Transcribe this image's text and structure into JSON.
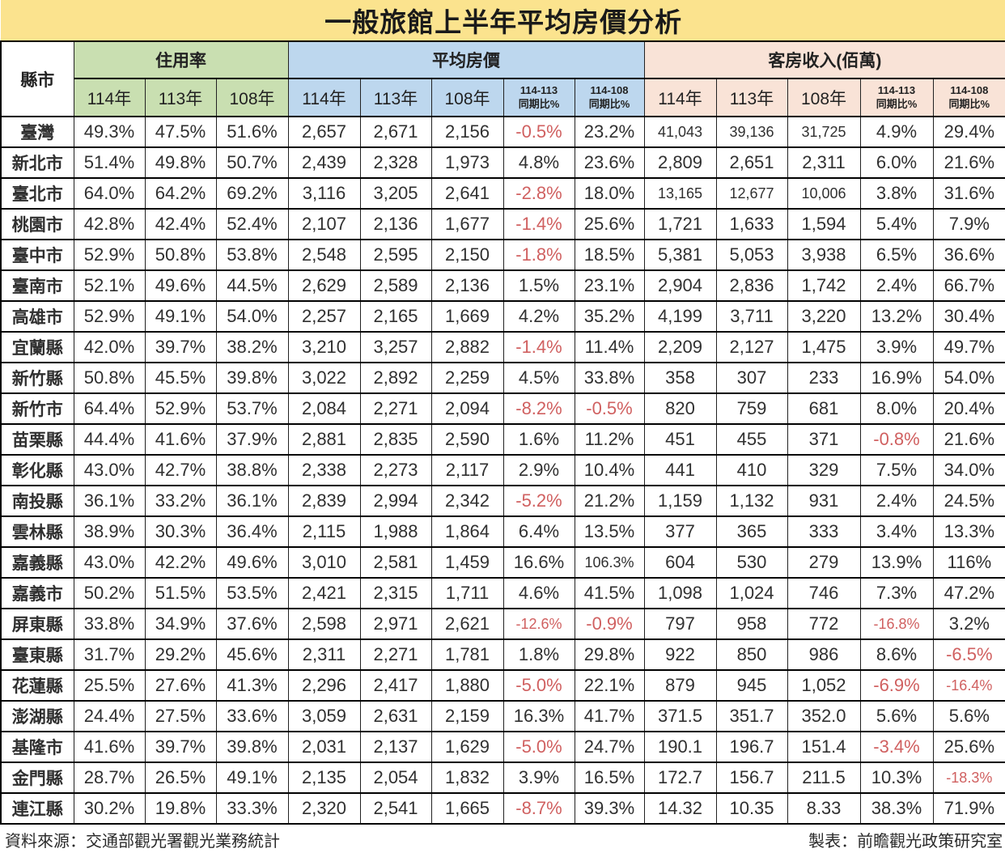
{
  "chart_data": {
    "type": "table",
    "title": "一般旅館上半年平均房價分析",
    "corner_label": "縣市",
    "groups": {
      "occupancy": {
        "label": "住用率",
        "columns": [
          "114年",
          "113年",
          "108年"
        ]
      },
      "price": {
        "label": "平均房價",
        "columns": [
          "114年",
          "113年",
          "108年",
          {
            "line1": "114-113",
            "line2": "同期比%"
          },
          {
            "line1": "114-108",
            "line2": "同期比%"
          }
        ]
      },
      "revenue": {
        "label": "客房收入(佰萬)",
        "columns": [
          "114年",
          "113年",
          "108年",
          {
            "line1": "114-113",
            "line2": "同期比%"
          },
          {
            "line1": "114-108",
            "line2": "同期比%"
          }
        ]
      }
    },
    "rows": [
      {
        "name": "臺灣",
        "occupancy": [
          "49.3%",
          "47.5%",
          "51.6%"
        ],
        "price": [
          "2,657",
          "2,671",
          "2,156",
          "-0.5%",
          "23.2%"
        ],
        "revenue": [
          "41,043",
          "39,136",
          "31,725",
          "4.9%",
          "29.4%"
        ]
      },
      {
        "name": "新北市",
        "occupancy": [
          "51.4%",
          "49.8%",
          "50.7%"
        ],
        "price": [
          "2,439",
          "2,328",
          "1,973",
          "4.8%",
          "23.6%"
        ],
        "revenue": [
          "2,809",
          "2,651",
          "2,311",
          "6.0%",
          "21.6%"
        ]
      },
      {
        "name": "臺北市",
        "occupancy": [
          "64.0%",
          "64.2%",
          "69.2%"
        ],
        "price": [
          "3,116",
          "3,205",
          "2,641",
          "-2.8%",
          "18.0%"
        ],
        "revenue": [
          "13,165",
          "12,677",
          "10,006",
          "3.8%",
          "31.6%"
        ]
      },
      {
        "name": "桃園市",
        "occupancy": [
          "42.8%",
          "42.4%",
          "52.4%"
        ],
        "price": [
          "2,107",
          "2,136",
          "1,677",
          "-1.4%",
          "25.6%"
        ],
        "revenue": [
          "1,721",
          "1,633",
          "1,594",
          "5.4%",
          "7.9%"
        ]
      },
      {
        "name": "臺中市",
        "occupancy": [
          "52.9%",
          "50.8%",
          "53.8%"
        ],
        "price": [
          "2,548",
          "2,595",
          "2,150",
          "-1.8%",
          "18.5%"
        ],
        "revenue": [
          "5,381",
          "5,053",
          "3,938",
          "6.5%",
          "36.6%"
        ]
      },
      {
        "name": "臺南市",
        "occupancy": [
          "52.1%",
          "49.6%",
          "44.5%"
        ],
        "price": [
          "2,629",
          "2,589",
          "2,136",
          "1.5%",
          "23.1%"
        ],
        "revenue": [
          "2,904",
          "2,836",
          "1,742",
          "2.4%",
          "66.7%"
        ]
      },
      {
        "name": "高雄市",
        "occupancy": [
          "52.9%",
          "49.1%",
          "54.0%"
        ],
        "price": [
          "2,257",
          "2,165",
          "1,669",
          "4.2%",
          "35.2%"
        ],
        "revenue": [
          "4,199",
          "3,711",
          "3,220",
          "13.2%",
          "30.4%"
        ]
      },
      {
        "name": "宜蘭縣",
        "occupancy": [
          "42.0%",
          "39.7%",
          "38.2%"
        ],
        "price": [
          "3,210",
          "3,257",
          "2,882",
          "-1.4%",
          "11.4%"
        ],
        "revenue": [
          "2,209",
          "2,127",
          "1,475",
          "3.9%",
          "49.7%"
        ]
      },
      {
        "name": "新竹縣",
        "occupancy": [
          "50.8%",
          "45.5%",
          "39.8%"
        ],
        "price": [
          "3,022",
          "2,892",
          "2,259",
          "4.5%",
          "33.8%"
        ],
        "revenue": [
          "358",
          "307",
          "233",
          "16.9%",
          "54.0%"
        ]
      },
      {
        "name": "新竹市",
        "occupancy": [
          "64.4%",
          "52.9%",
          "53.7%"
        ],
        "price": [
          "2,084",
          "2,271",
          "2,094",
          "-8.2%",
          "-0.5%"
        ],
        "revenue": [
          "820",
          "759",
          "681",
          "8.0%",
          "20.4%"
        ]
      },
      {
        "name": "苗栗縣",
        "occupancy": [
          "44.4%",
          "41.6%",
          "37.9%"
        ],
        "price": [
          "2,881",
          "2,835",
          "2,590",
          "1.6%",
          "11.2%"
        ],
        "revenue": [
          "451",
          "455",
          "371",
          "-0.8%",
          "21.6%"
        ]
      },
      {
        "name": "彰化縣",
        "occupancy": [
          "43.0%",
          "42.7%",
          "38.8%"
        ],
        "price": [
          "2,338",
          "2,273",
          "2,117",
          "2.9%",
          "10.4%"
        ],
        "revenue": [
          "441",
          "410",
          "329",
          "7.5%",
          "34.0%"
        ]
      },
      {
        "name": "南投縣",
        "occupancy": [
          "36.1%",
          "33.2%",
          "36.1%"
        ],
        "price": [
          "2,839",
          "2,994",
          "2,342",
          "-5.2%",
          "21.2%"
        ],
        "revenue": [
          "1,159",
          "1,132",
          "931",
          "2.4%",
          "24.5%"
        ]
      },
      {
        "name": "雲林縣",
        "occupancy": [
          "38.9%",
          "30.3%",
          "36.4%"
        ],
        "price": [
          "2,115",
          "1,988",
          "1,864",
          "6.4%",
          "13.5%"
        ],
        "revenue": [
          "377",
          "365",
          "333",
          "3.4%",
          "13.3%"
        ]
      },
      {
        "name": "嘉義縣",
        "occupancy": [
          "43.0%",
          "42.2%",
          "49.6%"
        ],
        "price": [
          "3,010",
          "2,581",
          "1,459",
          "16.6%",
          "106.3%"
        ],
        "revenue": [
          "604",
          "530",
          "279",
          "13.9%",
          "116%"
        ]
      },
      {
        "name": "嘉義市",
        "occupancy": [
          "50.2%",
          "51.5%",
          "53.5%"
        ],
        "price": [
          "2,421",
          "2,315",
          "1,711",
          "4.6%",
          "41.5%"
        ],
        "revenue": [
          "1,098",
          "1,024",
          "746",
          "7.3%",
          "47.2%"
        ]
      },
      {
        "name": "屏東縣",
        "occupancy": [
          "33.8%",
          "34.9%",
          "37.6%"
        ],
        "price": [
          "2,598",
          "2,971",
          "2,621",
          "-12.6%",
          "-0.9%"
        ],
        "revenue": [
          "797",
          "958",
          "772",
          "-16.8%",
          "3.2%"
        ]
      },
      {
        "name": "臺東縣",
        "occupancy": [
          "31.7%",
          "29.2%",
          "45.6%"
        ],
        "price": [
          "2,311",
          "2,271",
          "1,781",
          "1.8%",
          "29.8%"
        ],
        "revenue": [
          "922",
          "850",
          "986",
          "8.6%",
          "-6.5%"
        ]
      },
      {
        "name": "花蓮縣",
        "occupancy": [
          "25.5%",
          "27.6%",
          "41.3%"
        ],
        "price": [
          "2,296",
          "2,417",
          "1,880",
          "-5.0%",
          "22.1%"
        ],
        "revenue": [
          "879",
          "945",
          "1,052",
          "-6.9%",
          "-16.4%"
        ]
      },
      {
        "name": "澎湖縣",
        "occupancy": [
          "24.4%",
          "27.5%",
          "33.6%"
        ],
        "price": [
          "3,059",
          "2,631",
          "2,159",
          "16.3%",
          "41.7%"
        ],
        "revenue": [
          "371.5",
          "351.7",
          "352.0",
          "5.6%",
          "5.6%"
        ]
      },
      {
        "name": "基隆市",
        "occupancy": [
          "41.6%",
          "39.7%",
          "39.8%"
        ],
        "price": [
          "2,031",
          "2,137",
          "1,629",
          "-5.0%",
          "24.7%"
        ],
        "revenue": [
          "190.1",
          "196.7",
          "151.4",
          "-3.4%",
          "25.6%"
        ]
      },
      {
        "name": "金門縣",
        "occupancy": [
          "28.7%",
          "26.5%",
          "49.1%"
        ],
        "price": [
          "2,135",
          "2,054",
          "1,832",
          "3.9%",
          "16.5%"
        ],
        "revenue": [
          "172.7",
          "156.7",
          "211.5",
          "10.3%",
          "-18.3%"
        ]
      },
      {
        "name": "連江縣",
        "occupancy": [
          "30.2%",
          "19.8%",
          "33.3%"
        ],
        "price": [
          "2,320",
          "2,541",
          "1,665",
          "-8.7%",
          "39.3%"
        ],
        "revenue": [
          "14.32",
          "10.35",
          "8.33",
          "38.3%",
          "71.9%"
        ]
      }
    ],
    "footer": {
      "source": "資料來源：交通部觀光署觀光業務統計",
      "credit": "製表：前瞻觀光政策研究室"
    }
  },
  "colors": {
    "title_bg": "#fbe38e",
    "occupancy_bg": "#c9dfb1",
    "price_bg": "#bdd7ee",
    "revenue_bg": "#f9e3d7",
    "negative_text": "#d06060",
    "body_text": "#303030",
    "border": "#000000"
  }
}
